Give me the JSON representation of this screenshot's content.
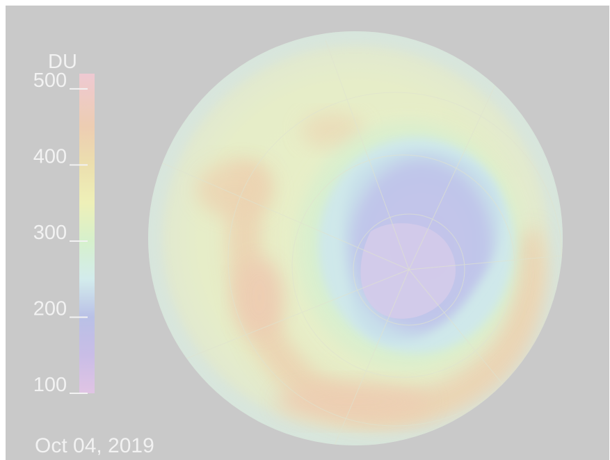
{
  "colorbar": {
    "unit": "DU",
    "min": 100,
    "max": 520,
    "ticks": [
      {
        "value": 500,
        "label": "500"
      },
      {
        "value": 400,
        "label": "400"
      },
      {
        "value": 300,
        "label": "300"
      },
      {
        "value": 200,
        "label": "200"
      },
      {
        "value": 100,
        "label": "100"
      }
    ],
    "stops": [
      {
        "value": 100,
        "color": "#e0c4e4"
      },
      {
        "value": 150,
        "color": "#c9bde6"
      },
      {
        "value": 200,
        "color": "#b9c0e6"
      },
      {
        "value": 250,
        "color": "#d3ecec"
      },
      {
        "value": 300,
        "color": "#d6f0cc"
      },
      {
        "value": 350,
        "color": "#eef0b8"
      },
      {
        "value": 400,
        "color": "#ecdfae"
      },
      {
        "value": 450,
        "color": "#edcdb2"
      },
      {
        "value": 520,
        "color": "#eec9d2"
      }
    ]
  },
  "date_label": "Oct 04, 2019",
  "colors": {
    "background": "#c9c9c9",
    "text": "#f2f2f2",
    "ozone_hole": "#c3c6e9",
    "antarctica": "#d4c9ea",
    "ring": "#ebd0b0",
    "globe_base": "#e7edc6"
  }
}
